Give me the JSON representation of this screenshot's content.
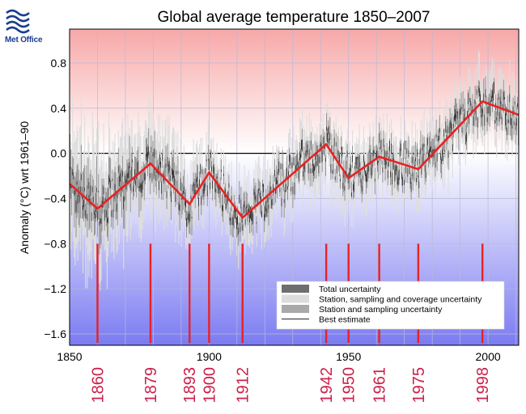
{
  "logo": {
    "text": "Met Office"
  },
  "chart_data": {
    "type": "line",
    "title": "Global average temperature 1850–2007",
    "xlabel": "",
    "ylabel": "Anomaly (°C) wrt 1961–90",
    "xlim": [
      1850,
      2011
    ],
    "ylim": [
      -1.7,
      1.1
    ],
    "x_ticks": [
      1850,
      1900,
      1950,
      2000
    ],
    "y_ticks": [
      0.8,
      0.4,
      0.0,
      -0.4,
      -0.8,
      -1.2,
      -1.6
    ],
    "y_tick_labels": [
      "0.8",
      "0.4",
      "0.0",
      "−0.4",
      "−0.8",
      "−1.2",
      "−1.6"
    ],
    "background": {
      "positive_color": "#f7a8a8",
      "negative_color": "#7b7bf2"
    },
    "legend": {
      "position": "bottom-right",
      "entries": [
        {
          "label": "Total uncertainty",
          "color": "#6e6e6e",
          "kind": "box"
        },
        {
          "label": "Station, sampling and coverage uncertainty",
          "color": "#dcdcdc",
          "kind": "box"
        },
        {
          "label": "Station and sampling uncertainty",
          "color": "#a9a9a9",
          "kind": "box"
        },
        {
          "label": "Best estimate",
          "color": "#444444",
          "kind": "line"
        }
      ]
    },
    "trend_series": {
      "name": "",
      "color": "#e82222",
      "points": [
        [
          1850,
          -0.27
        ],
        [
          1860,
          -0.49
        ],
        [
          1879,
          -0.09
        ],
        [
          1893,
          -0.45
        ],
        [
          1900,
          -0.17
        ],
        [
          1912,
          -0.57
        ],
        [
          1942,
          0.08
        ],
        [
          1950,
          -0.22
        ],
        [
          1961,
          -0.03
        ],
        [
          1975,
          -0.14
        ],
        [
          1998,
          0.46
        ],
        [
          2011,
          0.34
        ]
      ]
    },
    "marker_years": [
      "1860",
      "1879",
      "1893",
      "1900",
      "1912",
      "1942",
      "1950",
      "1961",
      "1975",
      "1998"
    ],
    "marker_color": "#e82222",
    "marker_label_color": "#cc1f4a",
    "marker_range": [
      -1.68,
      -0.8
    ]
  }
}
